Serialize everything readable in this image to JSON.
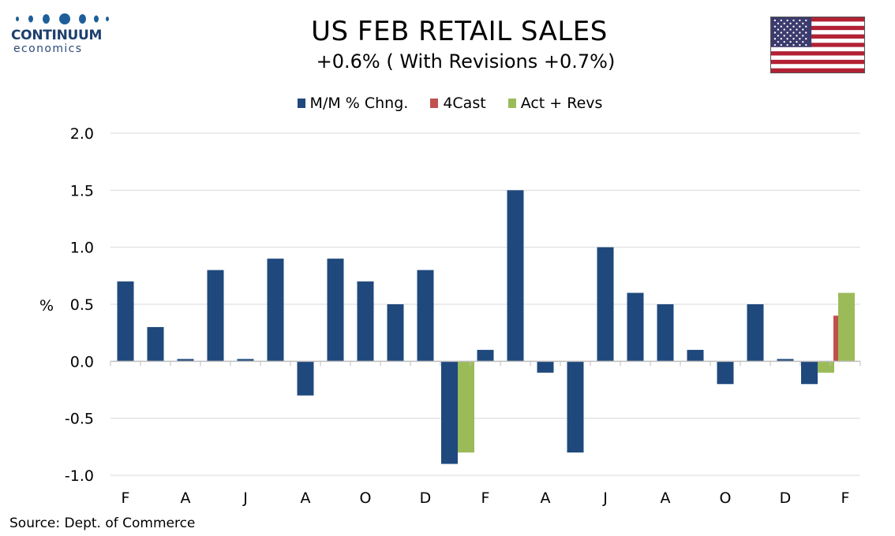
{
  "logo": {
    "word": "CONTINUUM",
    "sub": "economics",
    "color": "#1f5f99"
  },
  "header": {
    "title": "US FEB RETAIL SALES",
    "subtitle": "+0.6% ( With Revisions +0.7%)"
  },
  "flag": {
    "name": "us-flag-icon"
  },
  "source": "Source: Dept. of Commerce",
  "chart_data": {
    "type": "bar",
    "title": "US FEB RETAIL SALES",
    "subtitle": "+0.6% ( With Revisions +0.7%)",
    "ylabel": "%",
    "xlabel": "",
    "ylim": [
      -1.0,
      2.0
    ],
    "yticks": [
      2.0,
      1.5,
      1.0,
      0.5,
      0.0,
      -0.5,
      -1.0
    ],
    "ytick_labels": [
      "2.0",
      "1.5",
      "1.0",
      "0.5",
      "0.0",
      "-0.5",
      "-1.0"
    ],
    "x_tick_labels": [
      "F",
      "A",
      "J",
      "A",
      "O",
      "D",
      "F",
      "A",
      "J",
      "A",
      "O",
      "D",
      "F"
    ],
    "grid": true,
    "legend_position": "top-center",
    "series": [
      {
        "name": "M/M % Chng.",
        "color": "#1f497d",
        "values": [
          0.7,
          0.3,
          0.02,
          0.8,
          0.02,
          0.9,
          -0.3,
          0.9,
          0.7,
          0.5,
          0.8,
          -0.9,
          0.1,
          1.5,
          -0.1,
          -0.8,
          1.0,
          0.6,
          0.5,
          0.1,
          -0.2,
          0.5,
          0.02,
          -0.2,
          null
        ]
      },
      {
        "name": "4Cast",
        "color": "#c0504d",
        "values": [
          null,
          null,
          null,
          null,
          null,
          null,
          null,
          null,
          null,
          null,
          null,
          null,
          null,
          null,
          null,
          null,
          null,
          null,
          null,
          null,
          null,
          null,
          null,
          null,
          0.4
        ]
      },
      {
        "name": "Act + Revs",
        "color": "#9bbb59",
        "values": [
          null,
          null,
          null,
          null,
          null,
          null,
          null,
          null,
          null,
          null,
          null,
          -0.8,
          null,
          null,
          null,
          null,
          null,
          null,
          null,
          null,
          null,
          null,
          null,
          -0.1,
          0.6
        ]
      }
    ]
  }
}
